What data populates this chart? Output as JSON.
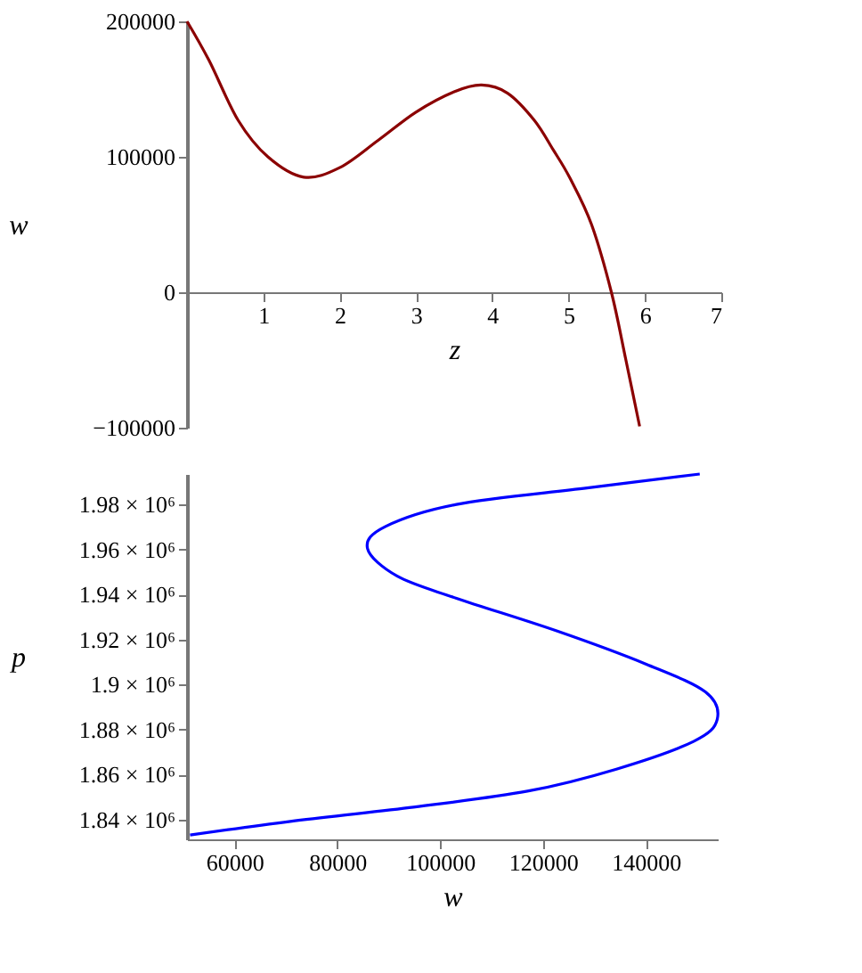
{
  "chart_data": [
    {
      "type": "line",
      "xlabel": "z",
      "ylabel": "w",
      "xlim": [
        0,
        7
      ],
      "ylim": [
        -100000,
        200000
      ],
      "xticks": [
        1,
        2,
        3,
        4,
        5,
        6,
        7
      ],
      "yticks": [
        -100000,
        0,
        100000,
        200000
      ],
      "grid": false,
      "x": [
        0,
        0.29,
        0.67,
        1.06,
        1.53,
        2.0,
        2.5,
        3.0,
        3.5,
        3.86,
        4.2,
        4.55,
        4.8,
        5.02,
        5.3,
        5.56,
        5.75,
        5.93
      ],
      "series": [
        {
          "color": "#8b0000",
          "values": [
            200000,
            171000,
            127000,
            100000,
            85000,
            92000,
            112000,
            133000,
            148000,
            153000,
            147000,
            127000,
            105000,
            84000,
            50000,
            0,
            -50000,
            -99000
          ]
        }
      ]
    },
    {
      "type": "line",
      "xlabel": "w",
      "ylabel": "p",
      "xlim": [
        50800,
        154000
      ],
      "ylim": [
        1831200,
        1993500
      ],
      "xticks": [
        60000,
        80000,
        100000,
        120000,
        140000
      ],
      "yticks": [
        {
          "value": 1840000,
          "label": "1.84 × 10⁶"
        },
        {
          "value": 1860000,
          "label": "1.86 × 10⁶"
        },
        {
          "value": 1880000,
          "label": "1.88 × 10⁶"
        },
        {
          "value": 1900000,
          "label": "1.9 × 10⁶"
        },
        {
          "value": 1920000,
          "label": "1.92 × 10⁶"
        },
        {
          "value": 1940000,
          "label": "1.94 × 10⁶"
        },
        {
          "value": 1960000,
          "label": "1.96 × 10⁶"
        },
        {
          "value": 1980000,
          "label": "1.98 × 10⁶"
        }
      ],
      "grid": false,
      "x": [
        51400,
        70900,
        94000,
        117000,
        134300,
        149300,
        153900,
        151600,
        140100,
        122800,
        103200,
        91700,
        85900,
        89400,
        103200,
        128600,
        150500
      ],
      "series": [
        {
          "color": "#0000ff",
          "values": [
            1833100,
            1839200,
            1845300,
            1852600,
            1862400,
            1874700,
            1884500,
            1896700,
            1909000,
            1923700,
            1938300,
            1948100,
            1960400,
            1970200,
            1980000,
            1987300,
            1993500
          ]
        }
      ]
    }
  ]
}
